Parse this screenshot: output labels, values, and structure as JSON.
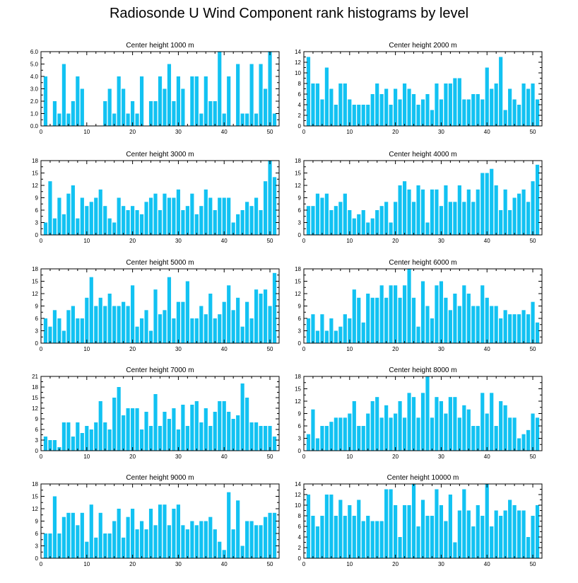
{
  "figure": {
    "title": "Radiosonde U Wind Component rank histograms by level",
    "bar_color": "#12c2f2",
    "axis_color": "#000000"
  },
  "chart_data": [
    {
      "type": "bar",
      "title": "Center height 1000 m",
      "x": [
        1,
        2,
        3,
        4,
        5,
        6,
        7,
        8,
        9,
        10,
        11,
        12,
        13,
        14,
        15,
        16,
        17,
        18,
        19,
        20,
        21,
        22,
        23,
        24,
        25,
        26,
        27,
        28,
        29,
        30,
        31,
        32,
        33,
        34,
        35,
        36,
        37,
        38,
        39,
        40,
        41,
        42,
        43,
        44,
        45,
        46,
        47,
        48,
        49,
        50,
        51
      ],
      "values": [
        4,
        0,
        2,
        1,
        5,
        1,
        2,
        4,
        3,
        0,
        0,
        0,
        0,
        2,
        3,
        1,
        4,
        3,
        1,
        2,
        1,
        4,
        0,
        2,
        2,
        4,
        3,
        5,
        2,
        4,
        3,
        0,
        4,
        4,
        1,
        4,
        2,
        2,
        6,
        1,
        4,
        0,
        5,
        1,
        1,
        5,
        1,
        5,
        3,
        6,
        1
      ],
      "xlim": [
        0,
        52
      ],
      "ylim": [
        0,
        6
      ],
      "yticks": [
        0,
        1,
        2,
        3,
        4,
        5,
        6
      ],
      "ytick_labels": [
        "0.0",
        "1.0",
        "2.0",
        "3.0",
        "4.0",
        "5.0",
        "6.0"
      ],
      "xticks": [
        0,
        10,
        20,
        30,
        40,
        50
      ]
    },
    {
      "type": "bar",
      "title": "Center height 2000 m",
      "x": [
        1,
        2,
        3,
        4,
        5,
        6,
        7,
        8,
        9,
        10,
        11,
        12,
        13,
        14,
        15,
        16,
        17,
        18,
        19,
        20,
        21,
        22,
        23,
        24,
        25,
        26,
        27,
        28,
        29,
        30,
        31,
        32,
        33,
        34,
        35,
        36,
        37,
        38,
        39,
        40,
        41,
        42,
        43,
        44,
        45,
        46,
        47,
        48,
        49,
        50,
        51
      ],
      "values": [
        13,
        8,
        8,
        5,
        11,
        7,
        4,
        8,
        8,
        5,
        4,
        4,
        4,
        4,
        6,
        8,
        6,
        7,
        4,
        7,
        5,
        8,
        7,
        6,
        4,
        5,
        6,
        3,
        8,
        5,
        8,
        8,
        9,
        9,
        5,
        5,
        6,
        6,
        5,
        11,
        7,
        8,
        13,
        3,
        7,
        5,
        4,
        8,
        7,
        8,
        5
      ],
      "xlim": [
        0,
        52
      ],
      "ylim": [
        0,
        14
      ],
      "yticks": [
        0,
        2,
        4,
        6,
        8,
        10,
        12,
        14
      ],
      "ytick_labels": [
        "0",
        "2",
        "4",
        "6",
        "8",
        "10",
        "12",
        "14"
      ],
      "xticks": [
        0,
        10,
        20,
        30,
        40,
        50
      ]
    },
    {
      "type": "bar",
      "title": "Center height 3000 m",
      "x": [
        1,
        2,
        3,
        4,
        5,
        6,
        7,
        8,
        9,
        10,
        11,
        12,
        13,
        14,
        15,
        16,
        17,
        18,
        19,
        20,
        21,
        22,
        23,
        24,
        25,
        26,
        27,
        28,
        29,
        30,
        31,
        32,
        33,
        34,
        35,
        36,
        37,
        38,
        39,
        40,
        41,
        42,
        43,
        44,
        45,
        46,
        47,
        48,
        49,
        50,
        51
      ],
      "values": [
        3,
        13,
        4,
        9,
        5,
        10,
        12,
        4,
        9,
        7,
        8,
        9,
        11,
        7,
        4,
        3,
        9,
        7,
        6,
        7,
        6,
        5,
        8,
        9,
        10,
        6,
        10,
        9,
        9,
        11,
        6,
        7,
        10,
        5,
        7,
        11,
        9,
        6,
        9,
        9,
        9,
        3,
        5,
        6,
        8,
        7,
        9,
        6,
        13,
        18,
        14
      ],
      "xlim": [
        0,
        52
      ],
      "ylim": [
        0,
        18
      ],
      "yticks": [
        0,
        3,
        6,
        9,
        12,
        15,
        18
      ],
      "ytick_labels": [
        "0",
        "3",
        "6",
        "9",
        "12",
        "15",
        "18"
      ],
      "xticks": [
        0,
        10,
        20,
        30,
        40,
        50
      ]
    },
    {
      "type": "bar",
      "title": "Center height 4000 m",
      "x": [
        1,
        2,
        3,
        4,
        5,
        6,
        7,
        8,
        9,
        10,
        11,
        12,
        13,
        14,
        15,
        16,
        17,
        18,
        19,
        20,
        21,
        22,
        23,
        24,
        25,
        26,
        27,
        28,
        29,
        30,
        31,
        32,
        33,
        34,
        35,
        36,
        37,
        38,
        39,
        40,
        41,
        42,
        43,
        44,
        45,
        46,
        47,
        48,
        49,
        50,
        51
      ],
      "values": [
        7,
        7,
        10,
        9,
        10,
        6,
        7,
        8,
        10,
        6,
        4,
        5,
        6,
        3,
        4,
        6,
        7,
        8,
        3,
        8,
        12,
        13,
        11,
        8,
        12,
        11,
        3,
        11,
        11,
        7,
        12,
        8,
        8,
        12,
        8,
        11,
        8,
        11,
        15,
        15,
        16,
        12,
        6,
        11,
        6,
        9,
        10,
        11,
        8,
        13,
        17
      ],
      "xlim": [
        0,
        52
      ],
      "ylim": [
        0,
        18
      ],
      "yticks": [
        0,
        3,
        6,
        9,
        12,
        15,
        18
      ],
      "ytick_labels": [
        "0",
        "3",
        "6",
        "9",
        "12",
        "15",
        "18"
      ],
      "xticks": [
        0,
        10,
        20,
        30,
        40,
        50
      ]
    },
    {
      "type": "bar",
      "title": "Center height 5000 m",
      "x": [
        1,
        2,
        3,
        4,
        5,
        6,
        7,
        8,
        9,
        10,
        11,
        12,
        13,
        14,
        15,
        16,
        17,
        18,
        19,
        20,
        21,
        22,
        23,
        24,
        25,
        26,
        27,
        28,
        29,
        30,
        31,
        32,
        33,
        34,
        35,
        36,
        37,
        38,
        39,
        40,
        41,
        42,
        43,
        44,
        45,
        46,
        47,
        48,
        49,
        50,
        51
      ],
      "values": [
        6,
        4,
        8,
        6,
        3,
        8,
        9,
        6,
        6,
        11,
        16,
        9,
        11,
        9,
        12,
        9,
        9,
        10,
        9,
        14,
        4,
        6,
        8,
        3,
        13,
        7,
        8,
        16,
        6,
        10,
        10,
        15,
        6,
        6,
        9,
        7,
        12,
        6,
        7,
        10,
        14,
        8,
        11,
        4,
        10,
        6,
        13,
        12,
        13,
        9,
        17
      ],
      "xlim": [
        0,
        52
      ],
      "ylim": [
        0,
        18
      ],
      "yticks": [
        0,
        3,
        6,
        9,
        12,
        15,
        18
      ],
      "ytick_labels": [
        "0",
        "3",
        "6",
        "9",
        "12",
        "15",
        "18"
      ],
      "xticks": [
        0,
        10,
        20,
        30,
        40,
        50
      ]
    },
    {
      "type": "bar",
      "title": "Center height 6000 m",
      "x": [
        1,
        2,
        3,
        4,
        5,
        6,
        7,
        8,
        9,
        10,
        11,
        12,
        13,
        14,
        15,
        16,
        17,
        18,
        19,
        20,
        21,
        22,
        23,
        24,
        25,
        26,
        27,
        28,
        29,
        30,
        31,
        32,
        33,
        34,
        35,
        36,
        37,
        38,
        39,
        40,
        41,
        42,
        43,
        44,
        45,
        46,
        47,
        48,
        49,
        50,
        51
      ],
      "values": [
        6,
        7,
        3,
        7,
        3,
        6,
        3,
        4,
        7,
        6,
        13,
        11,
        5,
        12,
        11,
        11,
        14,
        11,
        14,
        14,
        11,
        14,
        18,
        11,
        4,
        15,
        9,
        6,
        14,
        15,
        11,
        8,
        12,
        9,
        14,
        12,
        9,
        9,
        14,
        11,
        9,
        9,
        6,
        8,
        7,
        7,
        7,
        8,
        7,
        10,
        5
      ],
      "xlim": [
        0,
        52
      ],
      "ylim": [
        0,
        18
      ],
      "yticks": [
        0,
        3,
        6,
        9,
        12,
        15,
        18
      ],
      "ytick_labels": [
        "0",
        "3",
        "6",
        "9",
        "12",
        "15",
        "18"
      ],
      "xticks": [
        0,
        10,
        20,
        30,
        40,
        50
      ]
    },
    {
      "type": "bar",
      "title": "Center height 7000 m",
      "x": [
        1,
        2,
        3,
        4,
        5,
        6,
        7,
        8,
        9,
        10,
        11,
        12,
        13,
        14,
        15,
        16,
        17,
        18,
        19,
        20,
        21,
        22,
        23,
        24,
        25,
        26,
        27,
        28,
        29,
        30,
        31,
        32,
        33,
        34,
        35,
        36,
        37,
        38,
        39,
        40,
        41,
        42,
        43,
        44,
        45,
        46,
        47,
        48,
        49,
        50,
        51
      ],
      "values": [
        4,
        3,
        3,
        1,
        8,
        8,
        4,
        8,
        5,
        7,
        6,
        8,
        14,
        8,
        6,
        15,
        18,
        10,
        12,
        12,
        12,
        6,
        11,
        7,
        16,
        7,
        11,
        9,
        12,
        6,
        13,
        7,
        13,
        14,
        8,
        12,
        7,
        11,
        14,
        14,
        11,
        9,
        10,
        19,
        15,
        8,
        8,
        7,
        7,
        7,
        4
      ],
      "xlim": [
        0,
        52
      ],
      "ylim": [
        0,
        21
      ],
      "yticks": [
        0,
        3,
        6,
        9,
        12,
        15,
        18,
        21
      ],
      "ytick_labels": [
        "0",
        "3",
        "6",
        "9",
        "12",
        "15",
        "18",
        "21"
      ],
      "xticks": [
        0,
        10,
        20,
        30,
        40,
        50
      ]
    },
    {
      "type": "bar",
      "title": "Center height 8000 m",
      "x": [
        1,
        2,
        3,
        4,
        5,
        6,
        7,
        8,
        9,
        10,
        11,
        12,
        13,
        14,
        15,
        16,
        17,
        18,
        19,
        20,
        21,
        22,
        23,
        24,
        25,
        26,
        27,
        28,
        29,
        30,
        31,
        32,
        33,
        34,
        35,
        36,
        37,
        38,
        39,
        40,
        41,
        42,
        43,
        44,
        45,
        46,
        47,
        48,
        49,
        50,
        51
      ],
      "values": [
        4,
        10,
        3,
        6,
        6,
        7,
        8,
        8,
        8,
        9,
        12,
        6,
        6,
        9,
        12,
        13,
        8,
        11,
        8,
        9,
        12,
        8,
        14,
        13,
        8,
        14,
        18,
        8,
        13,
        12,
        9,
        13,
        13,
        8,
        11,
        10,
        6,
        6,
        14,
        9,
        14,
        6,
        12,
        11,
        8,
        8,
        3,
        4,
        5,
        9,
        8
      ],
      "xlim": [
        0,
        52
      ],
      "ylim": [
        0,
        18
      ],
      "yticks": [
        0,
        3,
        6,
        9,
        12,
        15,
        18
      ],
      "ytick_labels": [
        "0",
        "3",
        "6",
        "9",
        "12",
        "15",
        "18"
      ],
      "xticks": [
        0,
        10,
        20,
        30,
        40,
        50
      ]
    },
    {
      "type": "bar",
      "title": "Center height 9000 m",
      "x": [
        1,
        2,
        3,
        4,
        5,
        6,
        7,
        8,
        9,
        10,
        11,
        12,
        13,
        14,
        15,
        16,
        17,
        18,
        19,
        20,
        21,
        22,
        23,
        24,
        25,
        26,
        27,
        28,
        29,
        30,
        31,
        32,
        33,
        34,
        35,
        36,
        37,
        38,
        39,
        40,
        41,
        42,
        43,
        44,
        45,
        46,
        47,
        48,
        49,
        50,
        51
      ],
      "values": [
        6,
        6,
        15,
        6,
        10,
        11,
        11,
        8,
        11,
        4,
        13,
        5,
        11,
        6,
        6,
        9,
        12,
        5,
        10,
        12,
        7,
        9,
        7,
        12,
        8,
        13,
        13,
        8,
        12,
        13,
        8,
        7,
        9,
        8,
        9,
        9,
        10,
        7,
        4,
        2,
        16,
        7,
        14,
        3,
        9,
        9,
        8,
        8,
        10,
        11,
        11
      ],
      "xlim": [
        0,
        52
      ],
      "ylim": [
        0,
        18
      ],
      "yticks": [
        0,
        3,
        6,
        9,
        12,
        15,
        18
      ],
      "ytick_labels": [
        "0",
        "3",
        "6",
        "9",
        "12",
        "15",
        "18"
      ],
      "xticks": [
        0,
        10,
        20,
        30,
        40,
        50
      ]
    },
    {
      "type": "bar",
      "title": "Center height 10000 m",
      "x": [
        1,
        2,
        3,
        4,
        5,
        6,
        7,
        8,
        9,
        10,
        11,
        12,
        13,
        14,
        15,
        16,
        17,
        18,
        19,
        20,
        21,
        22,
        23,
        24,
        25,
        26,
        27,
        28,
        29,
        30,
        31,
        32,
        33,
        34,
        35,
        36,
        37,
        38,
        39,
        40,
        41,
        42,
        43,
        44,
        45,
        46,
        47,
        48,
        49,
        50,
        51
      ],
      "values": [
        12,
        8,
        6,
        8,
        12,
        12,
        8,
        11,
        8,
        10,
        8,
        11,
        7,
        8,
        7,
        7,
        7,
        13,
        13,
        10,
        4,
        10,
        10,
        14,
        6,
        11,
        8,
        8,
        13,
        10,
        7,
        12,
        3,
        9,
        13,
        9,
        6,
        10,
        8,
        14,
        6,
        9,
        8,
        9,
        11,
        10,
        9,
        9,
        4,
        8,
        10
      ],
      "xlim": [
        0,
        52
      ],
      "ylim": [
        0,
        14
      ],
      "yticks": [
        0,
        2,
        4,
        6,
        8,
        10,
        12,
        14
      ],
      "ytick_labels": [
        "0",
        "2",
        "4",
        "6",
        "8",
        "10",
        "12",
        "14"
      ],
      "xticks": [
        0,
        10,
        20,
        30,
        40,
        50
      ]
    }
  ]
}
